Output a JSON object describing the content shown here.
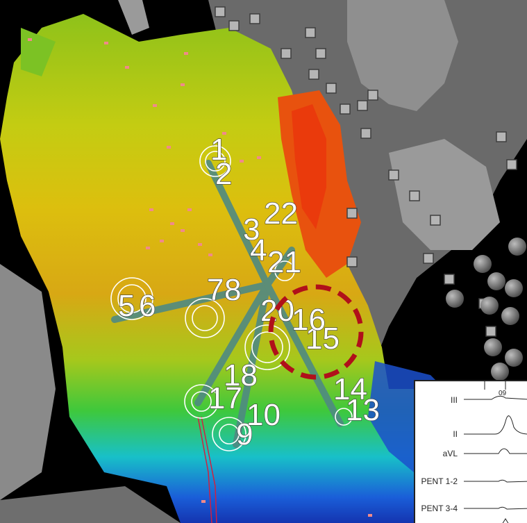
{
  "electrode_labels": [
    "1",
    "2",
    "3",
    "4",
    "5",
    "6",
    "7",
    "8",
    "9",
    "10",
    "13",
    "14",
    "15",
    "16",
    "17",
    "18",
    "20",
    "21",
    "22"
  ],
  "ecg": {
    "leads": [
      "III",
      "II",
      "aVL",
      "PENT 1-2",
      "PENT 3-4"
    ],
    "time_label": "09"
  },
  "colors": {
    "highlight_circle": "#b0101a",
    "catheter": "#4f8a82",
    "background": "#000000"
  }
}
